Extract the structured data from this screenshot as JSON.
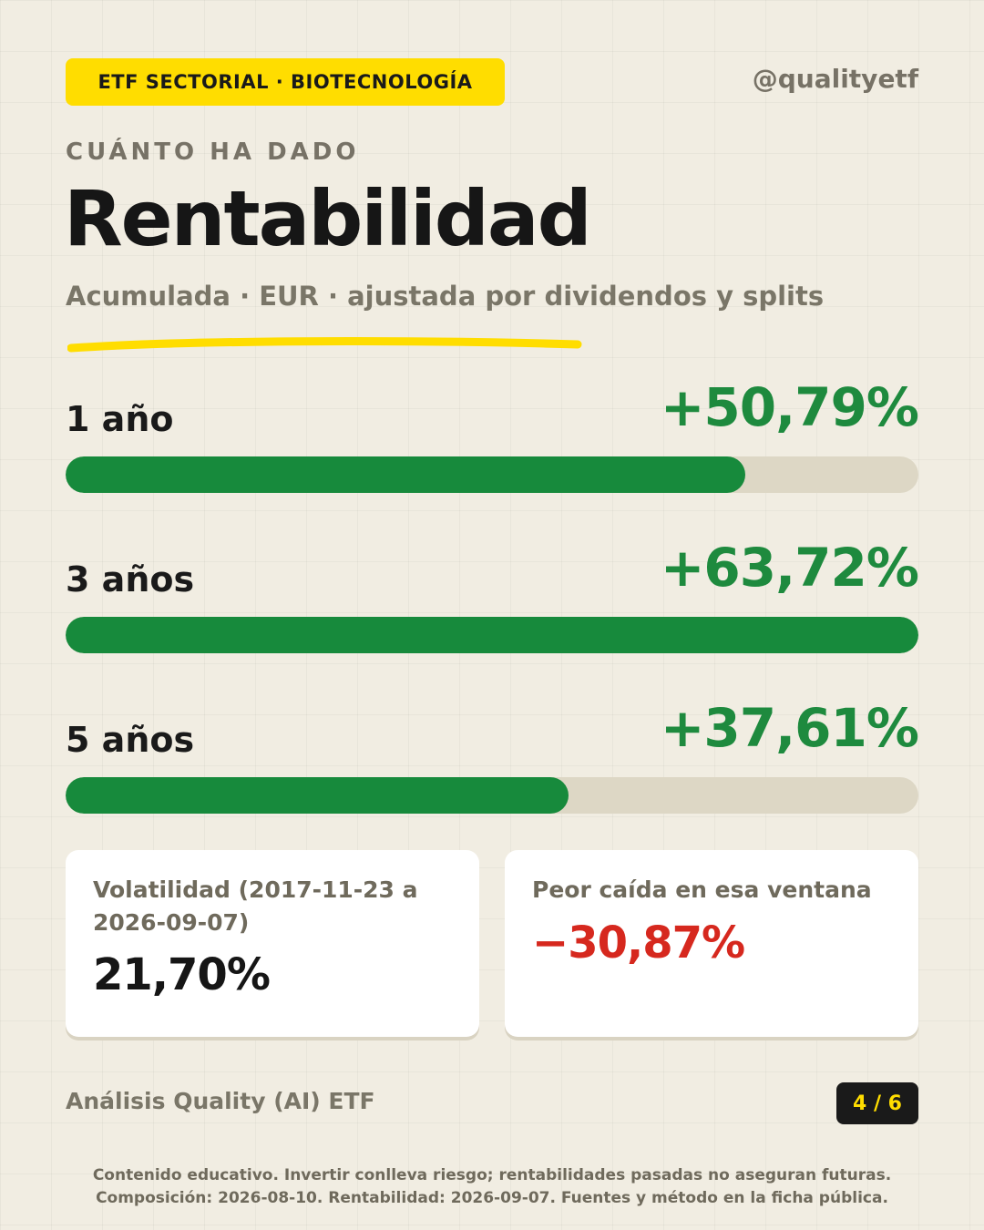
{
  "header": {
    "tag": "ETF SECTORIAL · BIOTECNOLOGÍA",
    "handle": "@qualityetf"
  },
  "eyebrow": "CUÁNTO HA DADO",
  "title": "Rentabilidad",
  "subtitle": "Acumulada · EUR · ajustada por dividendos y splits",
  "chart_data": {
    "type": "bar",
    "orientation": "horizontal",
    "title": "Rentabilidad",
    "categories": [
      "1 año",
      "3 años",
      "5 años"
    ],
    "values": [
      50.79,
      63.72,
      37.61
    ],
    "value_labels": [
      "+50,79%",
      "+63,72%",
      "+37,61%"
    ],
    "xlim": [
      0,
      63.72
    ],
    "grid": false,
    "colors": {
      "bar": "#178a3c",
      "track": "#ddd7c5",
      "value_text": "#1e8a3e"
    }
  },
  "cards": {
    "volatility": {
      "label": "Volatilidad (2017-11-23 a 2026-09-07)",
      "value": "21,70%"
    },
    "drawdown": {
      "label": "Peor caída en esa ventana",
      "value": "−30,87%",
      "color": "#d6281e"
    }
  },
  "footer": {
    "brand": "Análisis Quality (AI) ETF",
    "page": "4 / 6"
  },
  "disclaimer": {
    "line1": "Contenido educativo. Invertir conlleva riesgo; rentabilidades pasadas no aseguran futuras.",
    "line2": "Composición: 2026-08-10. Rentabilidad: 2026-09-07. Fuentes y método en la ficha pública."
  },
  "colors": {
    "accent": "#ffdd00",
    "positive": "#1e8a3e",
    "negative": "#d6281e",
    "background": "#f1ede2"
  }
}
